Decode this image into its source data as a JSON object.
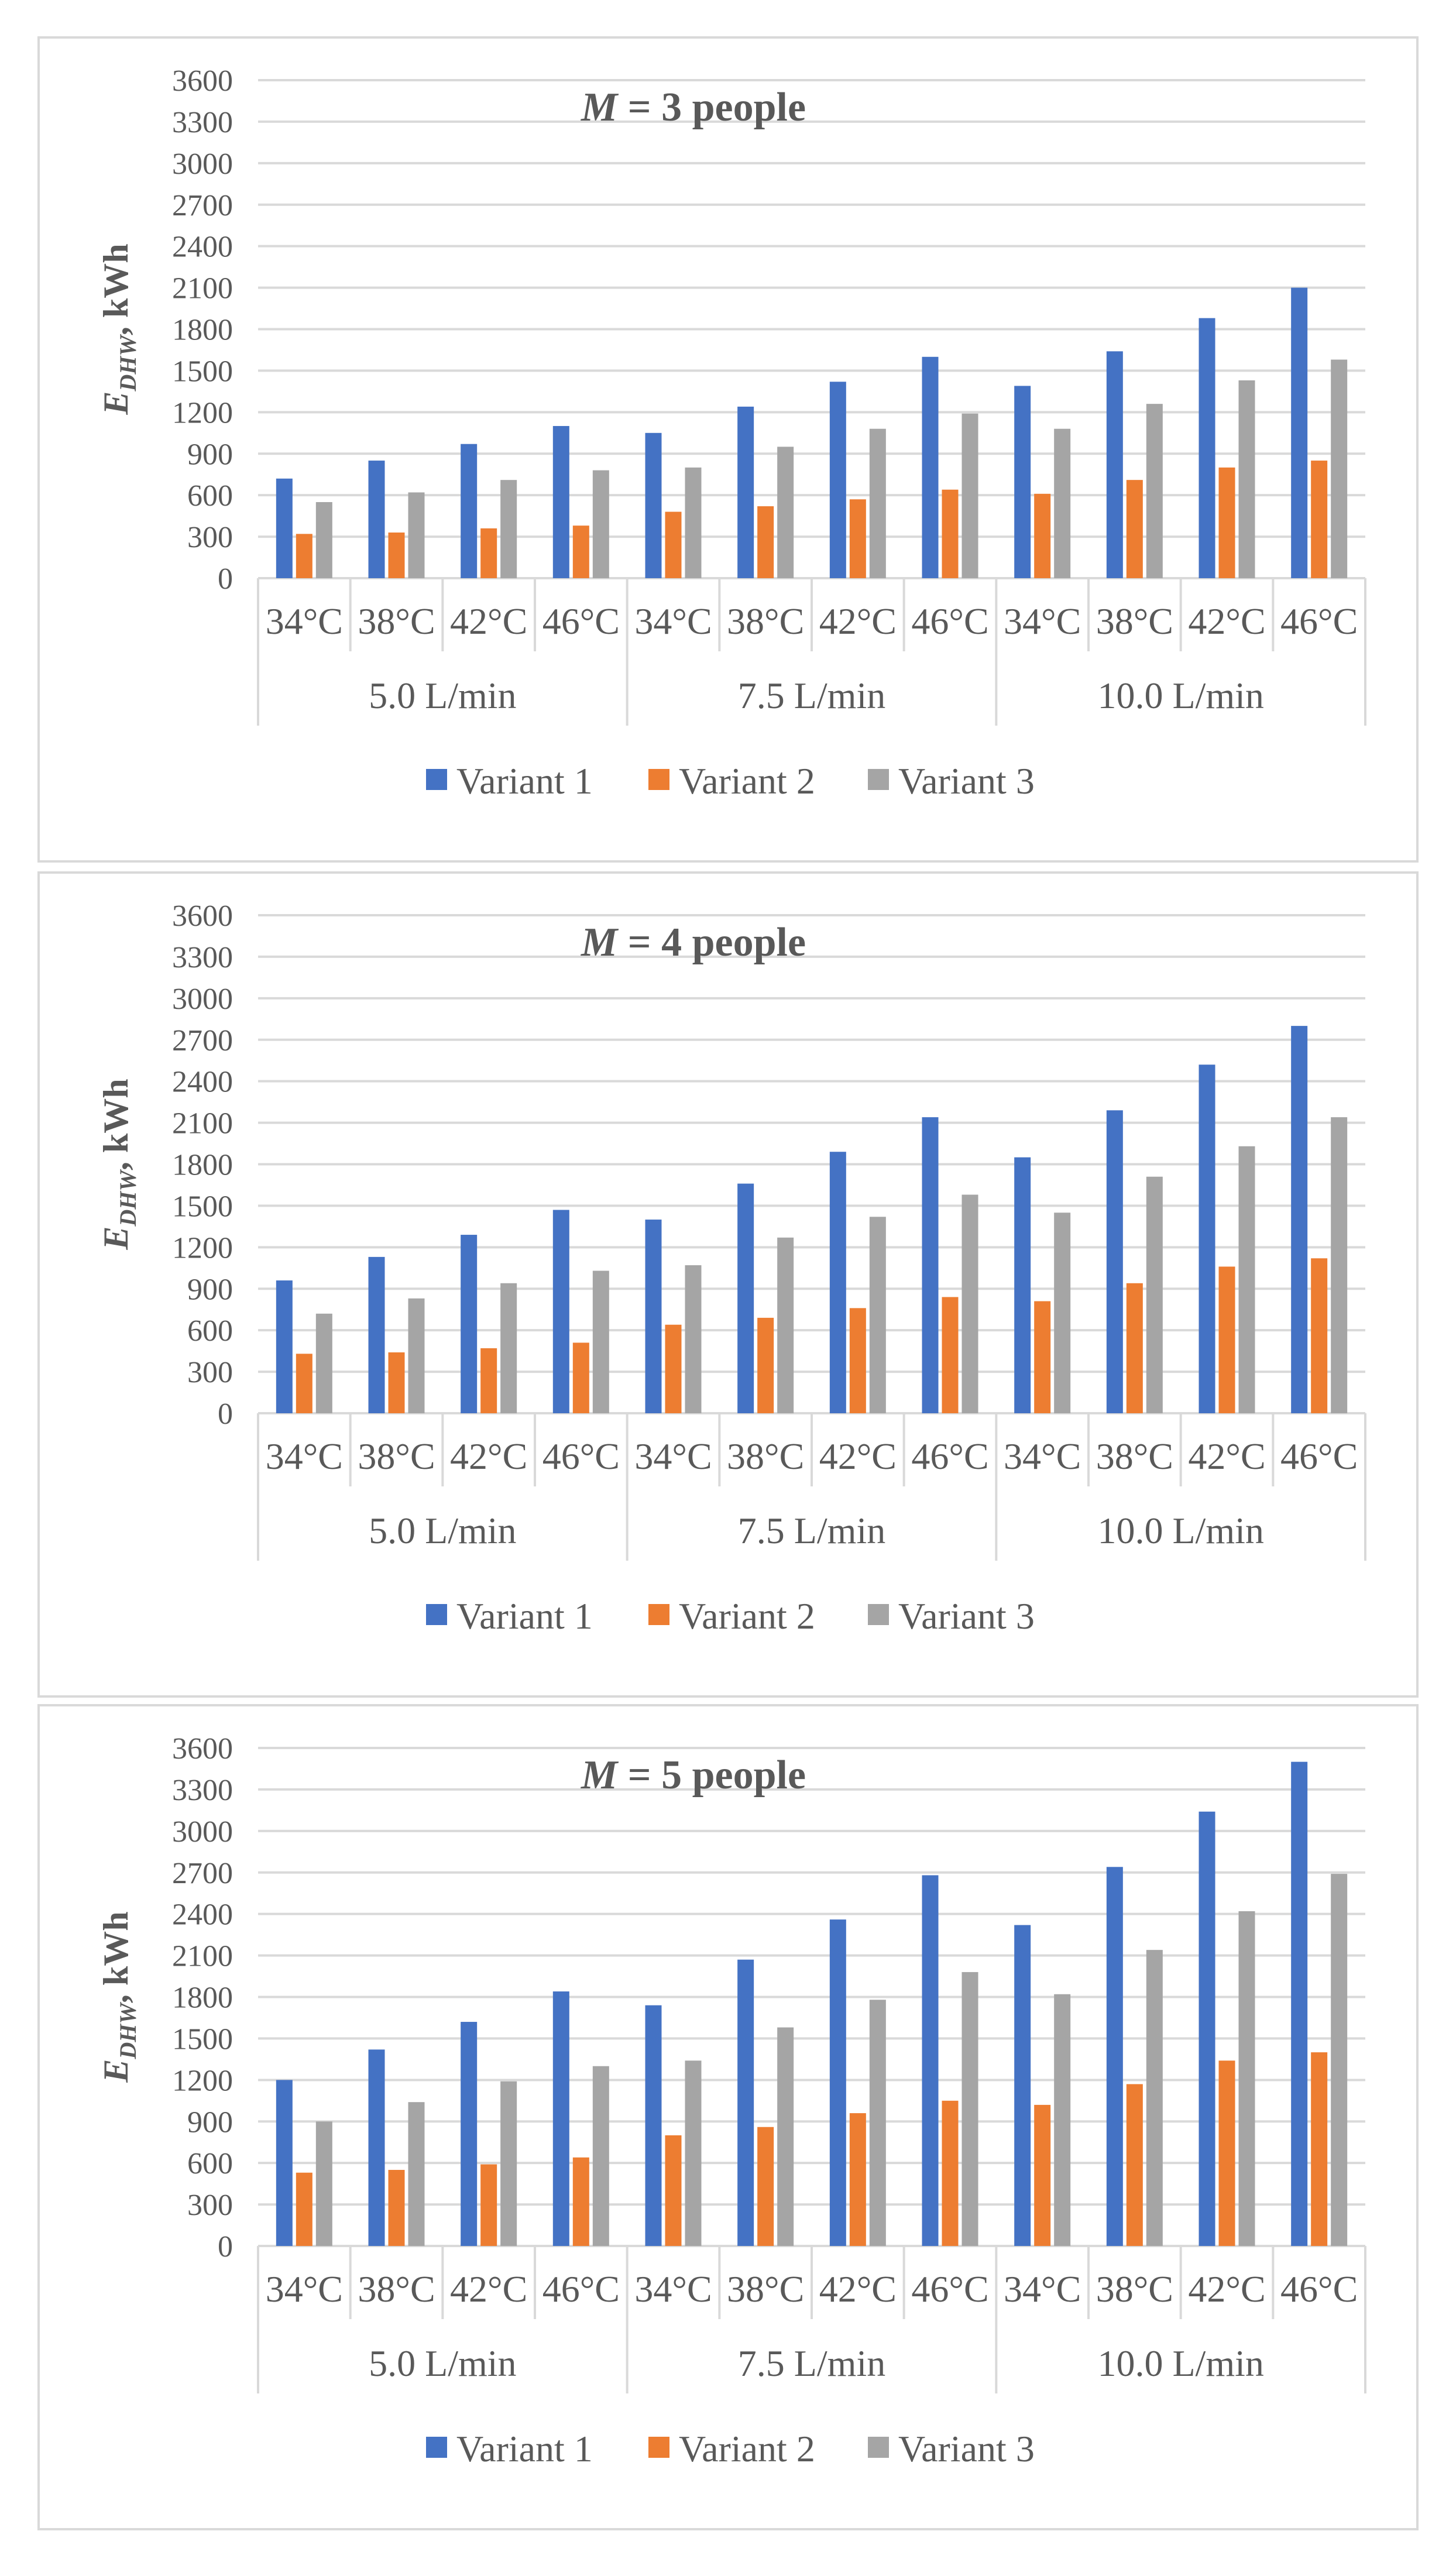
{
  "colors": {
    "variant1": "#4472c4",
    "variant2": "#ed7d31",
    "variant3": "#a5a5a5",
    "grid": "#d9d9d9",
    "text": "#595959"
  },
  "chart_data": [
    {
      "type": "bar",
      "title": {
        "var": "M",
        "text": " = 3 people"
      },
      "ylabel": {
        "main": "E",
        "sub": "DHW",
        "rest": ", kWh"
      },
      "ylim": [
        0,
        3600
      ],
      "yticks": [
        0,
        300,
        600,
        900,
        1200,
        1500,
        1800,
        2100,
        2400,
        2700,
        3000,
        3300,
        3600
      ],
      "grid": true,
      "legend_position": "bottom",
      "groups": [
        "5.0 L/min",
        "7.5 L/min",
        "10.0 L/min"
      ],
      "categories": [
        "34°C",
        "38°C",
        "42°C",
        "46°C",
        "34°C",
        "38°C",
        "42°C",
        "46°C",
        "34°C",
        "38°C",
        "42°C",
        "46°C"
      ],
      "series": [
        {
          "name": "Variant 1",
          "values": [
            720,
            850,
            970,
            1100,
            1050,
            1240,
            1420,
            1600,
            1390,
            1640,
            1880,
            2100
          ]
        },
        {
          "name": "Variant 2",
          "values": [
            320,
            330,
            360,
            380,
            480,
            520,
            570,
            640,
            610,
            710,
            800,
            850
          ]
        },
        {
          "name": "Variant 3",
          "values": [
            550,
            620,
            710,
            780,
            800,
            950,
            1080,
            1190,
            1080,
            1260,
            1430,
            1580
          ]
        }
      ]
    },
    {
      "type": "bar",
      "title": {
        "var": "M",
        "text": " = 4 people"
      },
      "ylabel": {
        "main": "E",
        "sub": "DHW",
        "rest": ", kWh"
      },
      "ylim": [
        0,
        3600
      ],
      "yticks": [
        0,
        300,
        600,
        900,
        1200,
        1500,
        1800,
        2100,
        2400,
        2700,
        3000,
        3300,
        3600
      ],
      "grid": true,
      "legend_position": "bottom",
      "groups": [
        "5.0 L/min",
        "7.5 L/min",
        "10.0 L/min"
      ],
      "categories": [
        "34°C",
        "38°C",
        "42°C",
        "46°C",
        "34°C",
        "38°C",
        "42°C",
        "46°C",
        "34°C",
        "38°C",
        "42°C",
        "46°C"
      ],
      "series": [
        {
          "name": "Variant 1",
          "values": [
            960,
            1130,
            1290,
            1470,
            1400,
            1660,
            1890,
            2140,
            1850,
            2190,
            2520,
            2800
          ]
        },
        {
          "name": "Variant 2",
          "values": [
            430,
            440,
            470,
            510,
            640,
            690,
            760,
            840,
            810,
            940,
            1060,
            1120
          ]
        },
        {
          "name": "Variant 3",
          "values": [
            720,
            830,
            940,
            1030,
            1070,
            1270,
            1420,
            1580,
            1450,
            1710,
            1930,
            2140
          ]
        }
      ]
    },
    {
      "type": "bar",
      "title": {
        "var": "M",
        "text": " = 5 people"
      },
      "ylabel": {
        "main": "E",
        "sub": "DHW",
        "rest": ", kWh"
      },
      "ylim": [
        0,
        3600
      ],
      "yticks": [
        0,
        300,
        600,
        900,
        1200,
        1500,
        1800,
        2100,
        2400,
        2700,
        3000,
        3300,
        3600
      ],
      "grid": true,
      "legend_position": "bottom",
      "groups": [
        "5.0 L/min",
        "7.5 L/min",
        "10.0 L/min"
      ],
      "categories": [
        "34°C",
        "38°C",
        "42°C",
        "46°C",
        "34°C",
        "38°C",
        "42°C",
        "46°C",
        "34°C",
        "38°C",
        "42°C",
        "46°C"
      ],
      "series": [
        {
          "name": "Variant 1",
          "values": [
            1200,
            1420,
            1620,
            1840,
            1740,
            2070,
            2360,
            2680,
            2320,
            2740,
            3140,
            3500
          ]
        },
        {
          "name": "Variant 2",
          "values": [
            530,
            550,
            590,
            640,
            800,
            860,
            960,
            1050,
            1020,
            1170,
            1340,
            1400
          ]
        },
        {
          "name": "Variant 3",
          "values": [
            900,
            1040,
            1190,
            1300,
            1340,
            1580,
            1780,
            1980,
            1820,
            2140,
            2420,
            2690
          ]
        }
      ]
    }
  ]
}
